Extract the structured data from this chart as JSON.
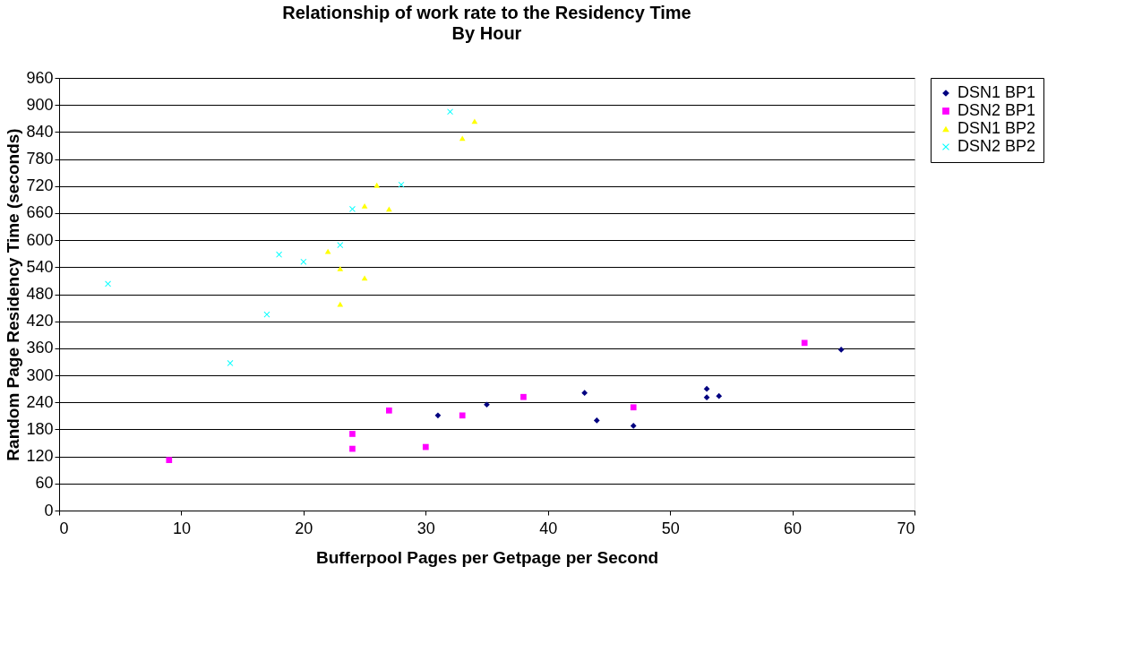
{
  "chart_data": {
    "type": "scatter",
    "title": "Relationship of work rate to the Residency Time",
    "subtitle": "By Hour",
    "xlabel": "Bufferpool Pages per Getpage per Second",
    "ylabel": "Random Page Residency Time (seconds)",
    "xlim": [
      0,
      70
    ],
    "xticks": [
      0,
      10,
      20,
      30,
      40,
      50,
      60,
      70
    ],
    "ylim": [
      0,
      960
    ],
    "yticks": [
      0,
      60,
      120,
      180,
      240,
      300,
      360,
      420,
      480,
      540,
      600,
      660,
      720,
      780,
      840,
      900,
      960
    ],
    "grid": "y",
    "legend": "right",
    "series": [
      {
        "name": "DSN1 BP1",
        "color": "#000080",
        "marker": "diamond",
        "x": [
          31,
          35,
          43,
          44,
          47,
          53,
          53,
          54,
          64
        ],
        "values": [
          211,
          235,
          261,
          200,
          188,
          270,
          251,
          254,
          357
        ]
      },
      {
        "name": "DSN2 BP1",
        "color": "#ff00ff",
        "marker": "square",
        "x": [
          9,
          24,
          24,
          27,
          30,
          33,
          38,
          47,
          61
        ],
        "values": [
          112,
          170,
          137,
          222,
          141,
          211,
          252,
          229,
          372
        ]
      },
      {
        "name": "DSN1 BP2",
        "color": "#ffff00",
        "marker": "triangle",
        "x": [
          34,
          33,
          26,
          25,
          27,
          22,
          23,
          25,
          23
        ],
        "values": [
          864,
          826,
          722,
          676,
          669,
          575,
          537,
          516,
          458
        ]
      },
      {
        "name": "DSN2 BP2",
        "color": "#00ffff",
        "marker": "cross",
        "x": [
          32,
          28,
          24,
          23,
          18,
          20,
          4,
          17,
          14
        ],
        "values": [
          885,
          723,
          669,
          589,
          568,
          552,
          503,
          435,
          327
        ]
      }
    ]
  }
}
